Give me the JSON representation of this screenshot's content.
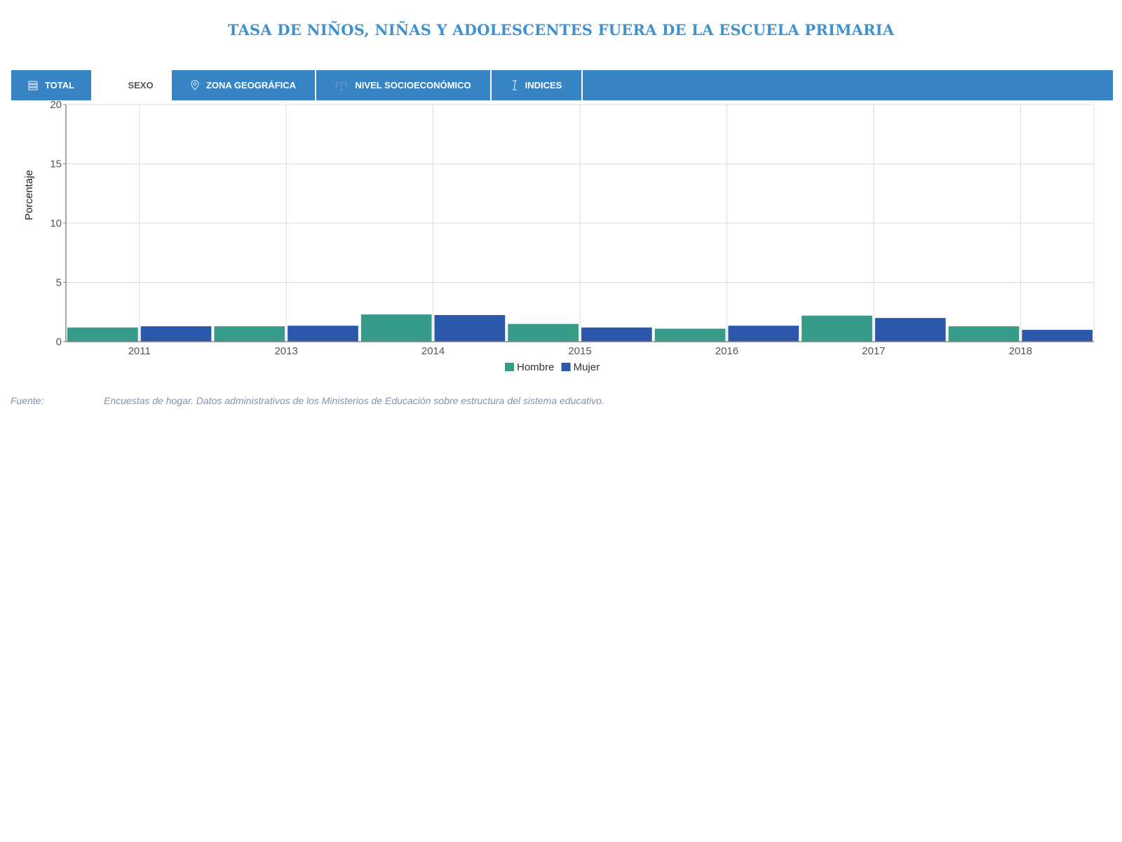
{
  "title": "TASA DE NIÑOS, NIÑAS Y ADOLESCENTES FUERA DE LA ESCUELA PRIMARIA",
  "tabs": [
    {
      "label": "TOTAL",
      "icon": "list-icon",
      "active": false
    },
    {
      "label": "SEXO",
      "icon": "gender-icon",
      "active": true
    },
    {
      "label": "ZONA GEOGRÁFICA",
      "icon": "map-pin-icon",
      "active": false
    },
    {
      "label": "NIVEL SOCIOECONÓMICO",
      "icon": "scale-icon",
      "active": false
    },
    {
      "label": "INDICES",
      "icon": "text-cursor-icon",
      "active": false
    }
  ],
  "source": {
    "label": "Fuente:",
    "text": "Encuestas de hogar. Datos administrativos de los Ministerios de Educación sobre estructura del sistema educativo."
  },
  "chart_data": {
    "type": "bar",
    "title": "",
    "xlabel": "",
    "ylabel": "Porcentaje",
    "categories": [
      "2011",
      "2013",
      "2014",
      "2015",
      "2016",
      "2017",
      "2018"
    ],
    "series": [
      {
        "name": "Hombre",
        "color": "#379b8a",
        "values": [
          1.2,
          1.3,
          2.3,
          1.5,
          1.1,
          2.2,
          1.3
        ]
      },
      {
        "name": "Mujer",
        "color": "#2b58ab",
        "values": [
          1.3,
          1.35,
          2.25,
          1.2,
          1.35,
          2.0,
          1.0
        ]
      }
    ],
    "ylim": [
      0,
      20
    ],
    "yticks": [
      0,
      5,
      10,
      15,
      20
    ],
    "grid": true,
    "legend": "bottom-center"
  }
}
